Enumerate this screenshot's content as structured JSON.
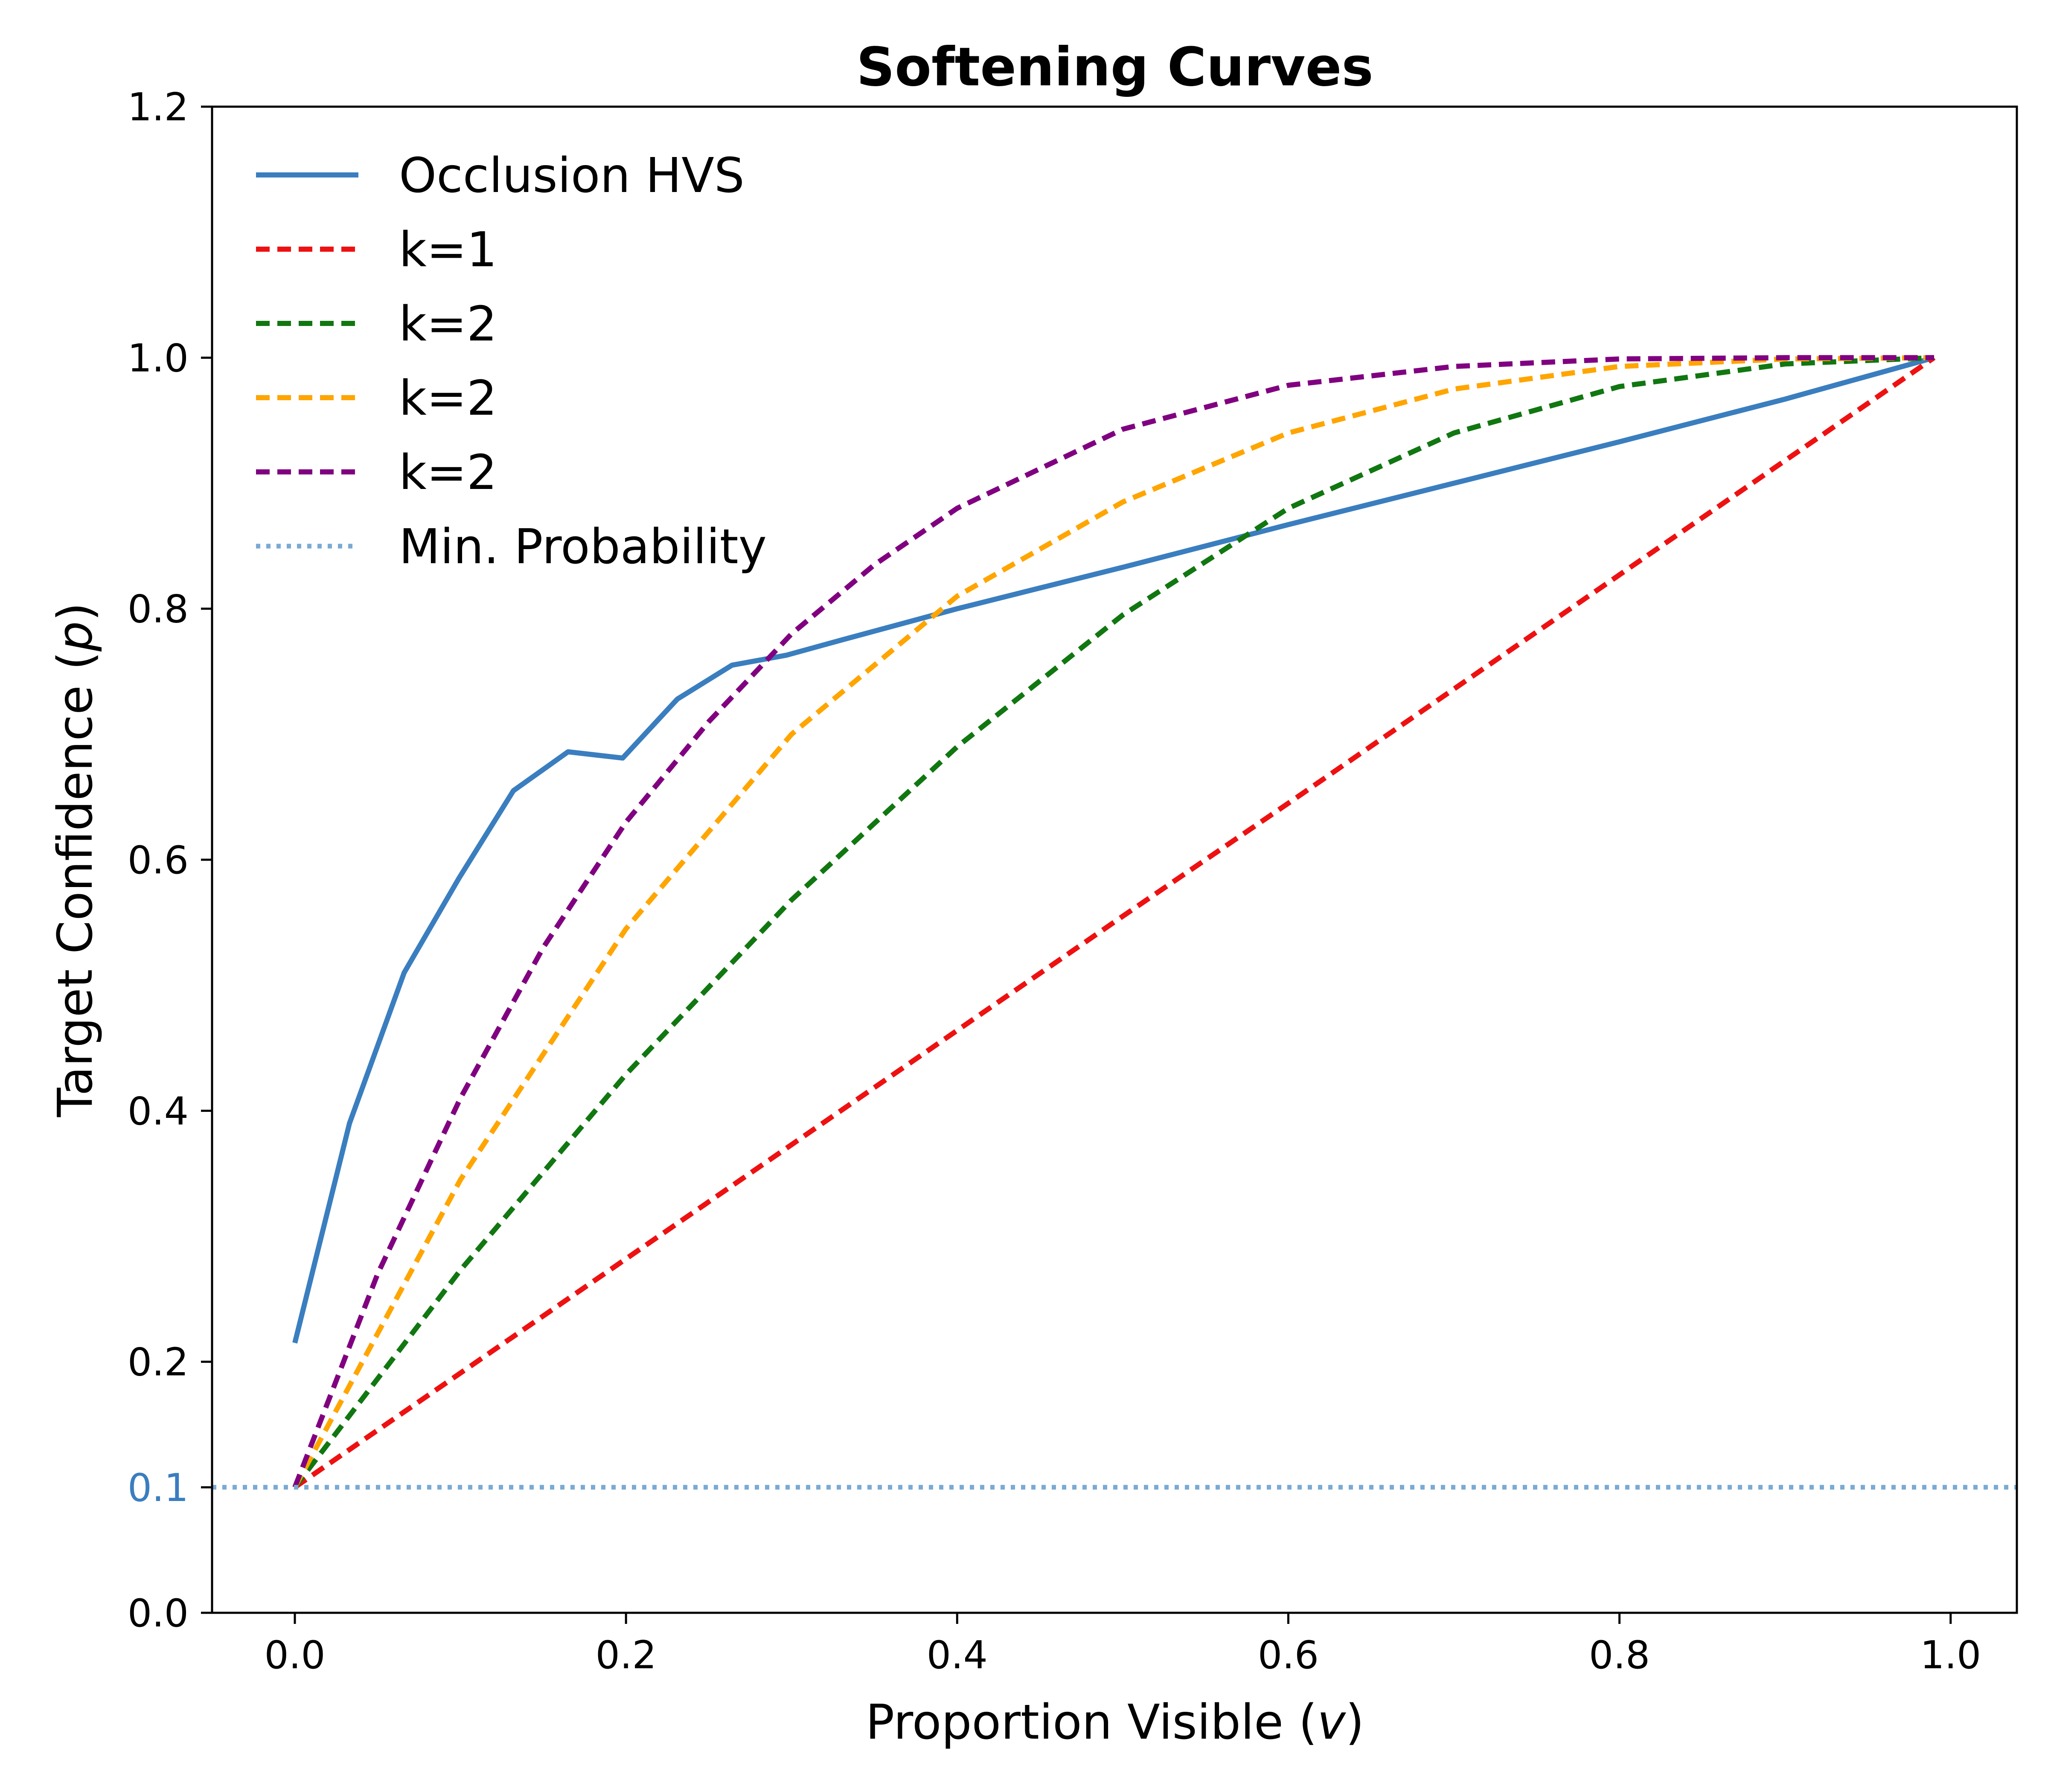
{
  "chart_data": {
    "type": "line",
    "title": "Softening Curves",
    "xlabel": "Proportion Visible",
    "xlabel_var": "v",
    "ylabel": "Target Confidence",
    "ylabel_var": "p",
    "xlim": [
      -0.05,
      1.04
    ],
    "ylim": [
      0.0,
      1.2
    ],
    "xticks": [
      0.0,
      0.2,
      0.4,
      0.6,
      0.8,
      1.0
    ],
    "xtick_labels": [
      "0.0",
      "0.2",
      "0.4",
      "0.6",
      "0.8",
      "1.0"
    ],
    "yticks": [
      0.0,
      0.1,
      0.2,
      0.4,
      0.6,
      0.8,
      1.0,
      1.2
    ],
    "ytick_labels": [
      "0.0",
      "0.1",
      "0.2",
      "0.4",
      "0.6",
      "0.8",
      "1.0",
      "1.2"
    ],
    "highlight_tick": {
      "value": 0.1,
      "color": "#3a7ebf"
    },
    "grid": false,
    "legend_position": "upper-left",
    "series": [
      {
        "name": "Occlusion HVS",
        "color": "#3a7ebf",
        "style": "solid",
        "x": [
          0.0,
          0.033,
          0.066,
          0.099,
          0.132,
          0.165,
          0.198,
          0.231,
          0.264,
          0.297,
          0.33,
          0.4,
          0.5,
          0.6,
          0.7,
          0.8,
          0.9,
          0.99
        ],
        "y": [
          0.215,
          0.39,
          0.51,
          0.585,
          0.655,
          0.686,
          0.681,
          0.728,
          0.755,
          0.763,
          0.775,
          0.8,
          0.833,
          0.867,
          0.9,
          0.933,
          0.967,
          1.0
        ]
      },
      {
        "name": "k=1",
        "color": "#ee1111",
        "style": "dashed",
        "x": [
          0.0,
          0.1,
          0.2,
          0.3,
          0.4,
          0.5,
          0.6,
          0.7,
          0.8,
          0.9,
          0.99
        ],
        "y": [
          0.1,
          0.191,
          0.282,
          0.373,
          0.464,
          0.555,
          0.645,
          0.736,
          0.827,
          0.918,
          1.0
        ]
      },
      {
        "name": "k=2",
        "color": "#117711",
        "style": "dashed",
        "x": [
          0.0,
          0.1,
          0.2,
          0.3,
          0.4,
          0.5,
          0.6,
          0.7,
          0.8,
          0.9,
          0.99
        ],
        "y": [
          0.1,
          0.273,
          0.429,
          0.568,
          0.69,
          0.795,
          0.88,
          0.94,
          0.977,
          0.995,
          1.0
        ]
      },
      {
        "name": "k=2",
        "color": "#ffa500",
        "style": "dashed",
        "x": [
          0.0,
          0.1,
          0.2,
          0.3,
          0.4,
          0.5,
          0.6,
          0.7,
          0.8,
          0.9,
          0.99
        ],
        "y": [
          0.1,
          0.345,
          0.545,
          0.7,
          0.81,
          0.885,
          0.94,
          0.975,
          0.993,
          0.999,
          1.0
        ]
      },
      {
        "name": "k=2",
        "color": "#800080",
        "style": "dashed",
        "x": [
          0.0,
          0.05,
          0.1,
          0.15,
          0.2,
          0.25,
          0.3,
          0.35,
          0.4,
          0.5,
          0.6,
          0.7,
          0.8,
          0.9,
          0.99
        ],
        "y": [
          0.1,
          0.27,
          0.41,
          0.53,
          0.63,
          0.71,
          0.78,
          0.835,
          0.88,
          0.943,
          0.978,
          0.993,
          0.999,
          1.0,
          1.0
        ]
      },
      {
        "name": "Min. Probability",
        "color": "#7aaad4",
        "style": "dotted",
        "x": [
          -0.05,
          1.04
        ],
        "y": [
          0.1,
          0.1
        ]
      }
    ]
  }
}
